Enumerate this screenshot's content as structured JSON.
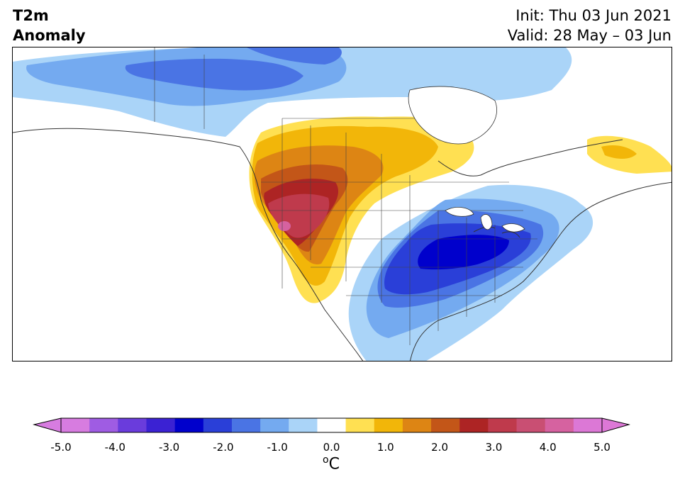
{
  "header": {
    "title_line1": "T2m",
    "title_line2": "Anomaly",
    "init_text": "Init: Thu 03 Jun 2021",
    "valid_text": "Valid: 28 May – 03 Jun"
  },
  "map": {
    "region": "North America",
    "variable": "2 m temperature anomaly",
    "features": {
      "warm_core": "Pacific Northwest / Great Basin",
      "cold_core": "Ohio Valley / Mid-Atlantic",
      "cool_band": "northern Canada",
      "warm_patch": "eastern Quebec / Labrador"
    }
  },
  "colorbar": {
    "unit_symbol": "o",
    "unit_letter": "C",
    "tick_labels": [
      "-5.0",
      "-4.0",
      "-3.0",
      "-2.0",
      "-1.0",
      "0.0",
      "1.0",
      "2.0",
      "3.0",
      "4.0",
      "5.0"
    ],
    "colors": [
      "#d77ce0",
      "#9f5ce3",
      "#6a3cdc",
      "#3b22d3",
      "#0000cc",
      "#2a3fd8",
      "#4a74e4",
      "#74aaf0",
      "#aad4f8",
      "#ffffff",
      "#ffe052",
      "#f2b609",
      "#dd8514",
      "#c35618",
      "#ad2424",
      "#bf3a4c",
      "#c94f73",
      "#d662a0",
      "#dc78d6"
    ],
    "below_color": "#d77ce0",
    "above_color": "#dc78d6"
  }
}
